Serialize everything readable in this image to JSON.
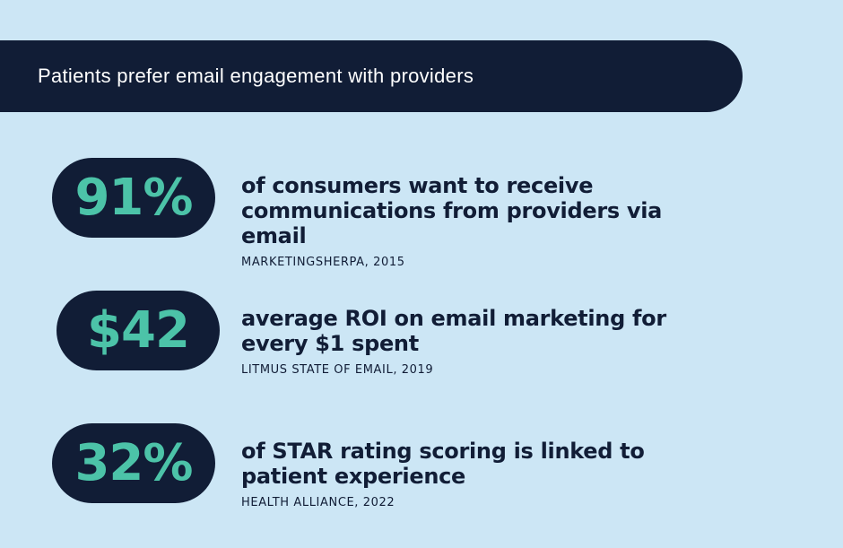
{
  "banner": {
    "title": "Patients prefer email engagement with providers"
  },
  "colors": {
    "background": "#cce6f5",
    "navy": "#111d36",
    "teal": "#4cc3a8"
  },
  "stats": [
    {
      "value": "91%",
      "description": "of consumers want to receive communications from providers via email",
      "source": "MARKETINGSHERPA, 2015"
    },
    {
      "value": "$42",
      "description": "average ROI on email marketing for every $1 spent",
      "source": "LITMUS STATE OF EMAIL, 2019"
    },
    {
      "value": "32%",
      "description": "of STAR rating scoring is linked to patient experience",
      "source": "HEALTH ALLIANCE, 2022"
    }
  ]
}
